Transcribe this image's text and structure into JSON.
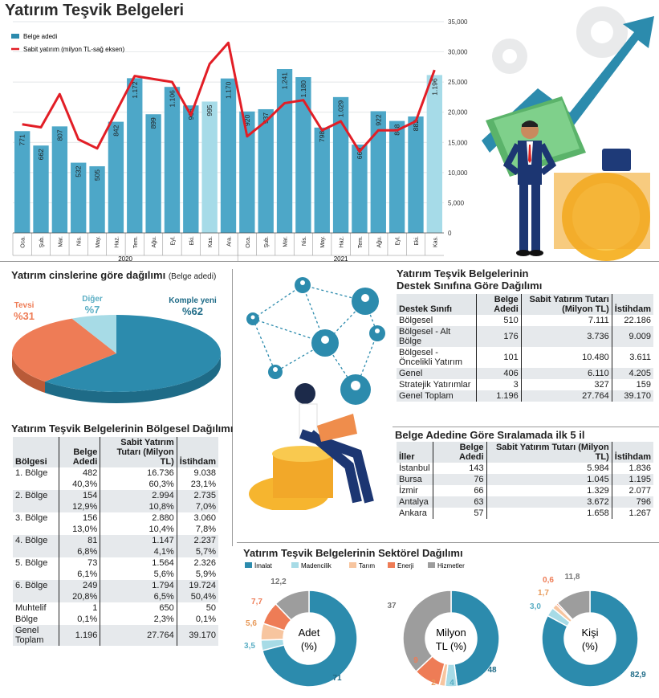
{
  "page": {
    "title": "Yatırım Teşvik Belgeleri"
  },
  "colors": {
    "bar": "#4da7c8",
    "bar_light": "#a6dbe8",
    "line": "#e21e26",
    "teal": "#2c8bad",
    "orange": "#ee7c56",
    "lightblue": "#a7dbe6",
    "grey": "#9d9d9d",
    "peach": "#f7c59f",
    "table_alt": "#e6e9ec"
  },
  "chart_data": [
    {
      "type": "bar",
      "title": "Yatırım Teşvik Belgeleri",
      "series": [
        {
          "name": "Belge adedi",
          "values": [
            771,
            662,
            807,
            532,
            505,
            842,
            1172,
            899,
            1106,
            966,
            995,
            1170,
            920,
            937,
            1241,
            1180,
            798,
            1029,
            669,
            922,
            848,
            882,
            1196
          ]
        },
        {
          "name": "Sabit yatırım (milyon TL-sağ eksen)",
          "values": [
            18000,
            17500,
            23000,
            15500,
            14000,
            20000,
            26000,
            25500,
            25000,
            19500,
            28000,
            31500,
            16000,
            18500,
            21500,
            22000,
            17000,
            18500,
            13500,
            17000,
            17000,
            18500,
            27000
          ]
        }
      ],
      "categories": [
        "Oca.",
        "Şub.",
        "Mar.",
        "Nis.",
        "May.",
        "Haz.",
        "Tem.",
        "Ağu.",
        "Eyl.",
        "Eki.",
        "Kas.",
        "Ara.",
        "Oca.",
        "Şub.",
        "Mar.",
        "Nis.",
        "May.",
        "Haz.",
        "Tem.",
        "Ağu.",
        "Eyl.",
        "Eki.",
        "Kas."
      ],
      "year_labels": [
        "2020",
        "2021"
      ],
      "bar_labels": [
        "771",
        "662",
        "807",
        "532",
        "505",
        "842",
        "1.172",
        "899",
        "1.106",
        "966",
        "995",
        "1.170",
        "920",
        "937",
        "1.241",
        "1.180",
        "798",
        "1.029",
        "669",
        "922",
        "848",
        "882",
        "1.196"
      ],
      "right_axis": {
        "ticks": [
          "35,000",
          "30,000",
          "25,000",
          "20,000",
          "15,000",
          "10,000",
          "5,000",
          "0"
        ],
        "ylim": [
          0,
          35000
        ]
      },
      "legend": [
        "Belge adedi",
        "Sabit yatırım (milyon TL-sağ eksen)"
      ]
    },
    {
      "type": "pie",
      "title": "Yatırım cinslerine göre dağılımı",
      "subtitle": "(Belge adedi)",
      "slices": [
        {
          "label": "Komple yeni",
          "value": 62,
          "text": "%62"
        },
        {
          "label": "Tevsi",
          "value": 31,
          "text": "%31"
        },
        {
          "label": "Diğer",
          "value": 7,
          "text": "%7"
        }
      ]
    },
    {
      "type": "pie",
      "title": "Yatırım Teşvik Belgelerinin Sektörel Dağılımı",
      "legend": [
        "İmalat",
        "Madencilik",
        "Tarım",
        "Enerji",
        "Hizmetler"
      ],
      "donuts": [
        {
          "center": "Adet (%)",
          "values": [
            71,
            3.5,
            5.6,
            7.7,
            12.2
          ],
          "labels": [
            "71",
            "3,5",
            "5,6",
            "7,7",
            "12,2"
          ]
        },
        {
          "center": "Milyon TL (%)",
          "values": [
            48,
            4,
            2,
            9,
            37
          ],
          "labels": [
            "48",
            "4",
            "2",
            "9",
            "37"
          ]
        },
        {
          "center": "Kişi (%)",
          "values": [
            82.9,
            3.0,
            1.7,
            0.6,
            11.8
          ],
          "labels": [
            "82,9",
            "3,0",
            "1,7",
            "0,6",
            "11,8"
          ]
        }
      ]
    }
  ],
  "destek": {
    "title1": "Yatırım Teşvik Belgelerinin",
    "title2": "Destek Sınıfına Göre Dağılımı",
    "headers": [
      "Destek Sınıfı",
      "Belge Adedi",
      "Sabit Yatırım Tutarı (Milyon TL)",
      "İstihdam"
    ],
    "rows": [
      [
        "Bölgesel",
        "510",
        "7.111",
        "22.186"
      ],
      [
        "Bölgesel - Alt Bölge",
        "176",
        "3.736",
        "9.009"
      ],
      [
        "Bölgesel - Öncelikli Yatırım",
        "101",
        "10.480",
        "3.611"
      ],
      [
        "Genel",
        "406",
        "6.110",
        "4.205"
      ],
      [
        "Stratejik Yatırımlar",
        "3",
        "327",
        "159"
      ],
      [
        "Genel Toplam",
        "1.196",
        "27.764",
        "39.170"
      ]
    ]
  },
  "iller": {
    "title": "Belge Adedine Göre Sıralamada ilk 5 il",
    "headers": [
      "İller",
      "Belge Adedi",
      "Sabit Yatırım Tutarı (Milyon TL)",
      "İstihdam"
    ],
    "rows": [
      [
        "İstanbul",
        "143",
        "5.984",
        "1.836"
      ],
      [
        "Bursa",
        "76",
        "1.045",
        "1.195"
      ],
      [
        "İzmir",
        "66",
        "1.329",
        "2.077"
      ],
      [
        "Antalya",
        "63",
        "3.672",
        "796"
      ],
      [
        "Ankara",
        "57",
        "1.658",
        "1.267"
      ]
    ]
  },
  "bolgesel": {
    "title": "Yatırım Teşvik Belgelerinin Bölgesel Dağılımı",
    "headers": [
      "Bölgesi",
      "Belge Adedi",
      "Sabit Yatırım Tutarı (Milyon TL)",
      "İstihdam"
    ],
    "rows": [
      [
        "1. Bölge",
        "482",
        "16.736",
        "9.038"
      ],
      [
        "",
        "40,3%",
        "60,3%",
        "23,1%"
      ],
      [
        "2. Bölge",
        "154",
        "2.994",
        "2.735"
      ],
      [
        "",
        "12,9%",
        "10,8%",
        "7,0%"
      ],
      [
        "3. Bölge",
        "156",
        "2.880",
        "3.060"
      ],
      [
        "",
        "13,0%",
        "10,4%",
        "7,8%"
      ],
      [
        "4. Bölge",
        "81",
        "1.147",
        "2.237"
      ],
      [
        "",
        "6,8%",
        "4,1%",
        "5,7%"
      ],
      [
        "5. Bölge",
        "73",
        "1.564",
        "2.326"
      ],
      [
        "",
        "6,1%",
        "5,6%",
        "5,9%"
      ],
      [
        "6. Bölge",
        "249",
        "1.794",
        "19.724"
      ],
      [
        "",
        "20,8%",
        "6,5%",
        "50,4%"
      ],
      [
        "Muhtelif",
        "1",
        "650",
        "50"
      ],
      [
        "Bölge",
        "0,1%",
        "2,3%",
        "0,1%"
      ],
      [
        "Genel Toplam",
        "1.196",
        "27.764",
        "39.170"
      ]
    ]
  }
}
